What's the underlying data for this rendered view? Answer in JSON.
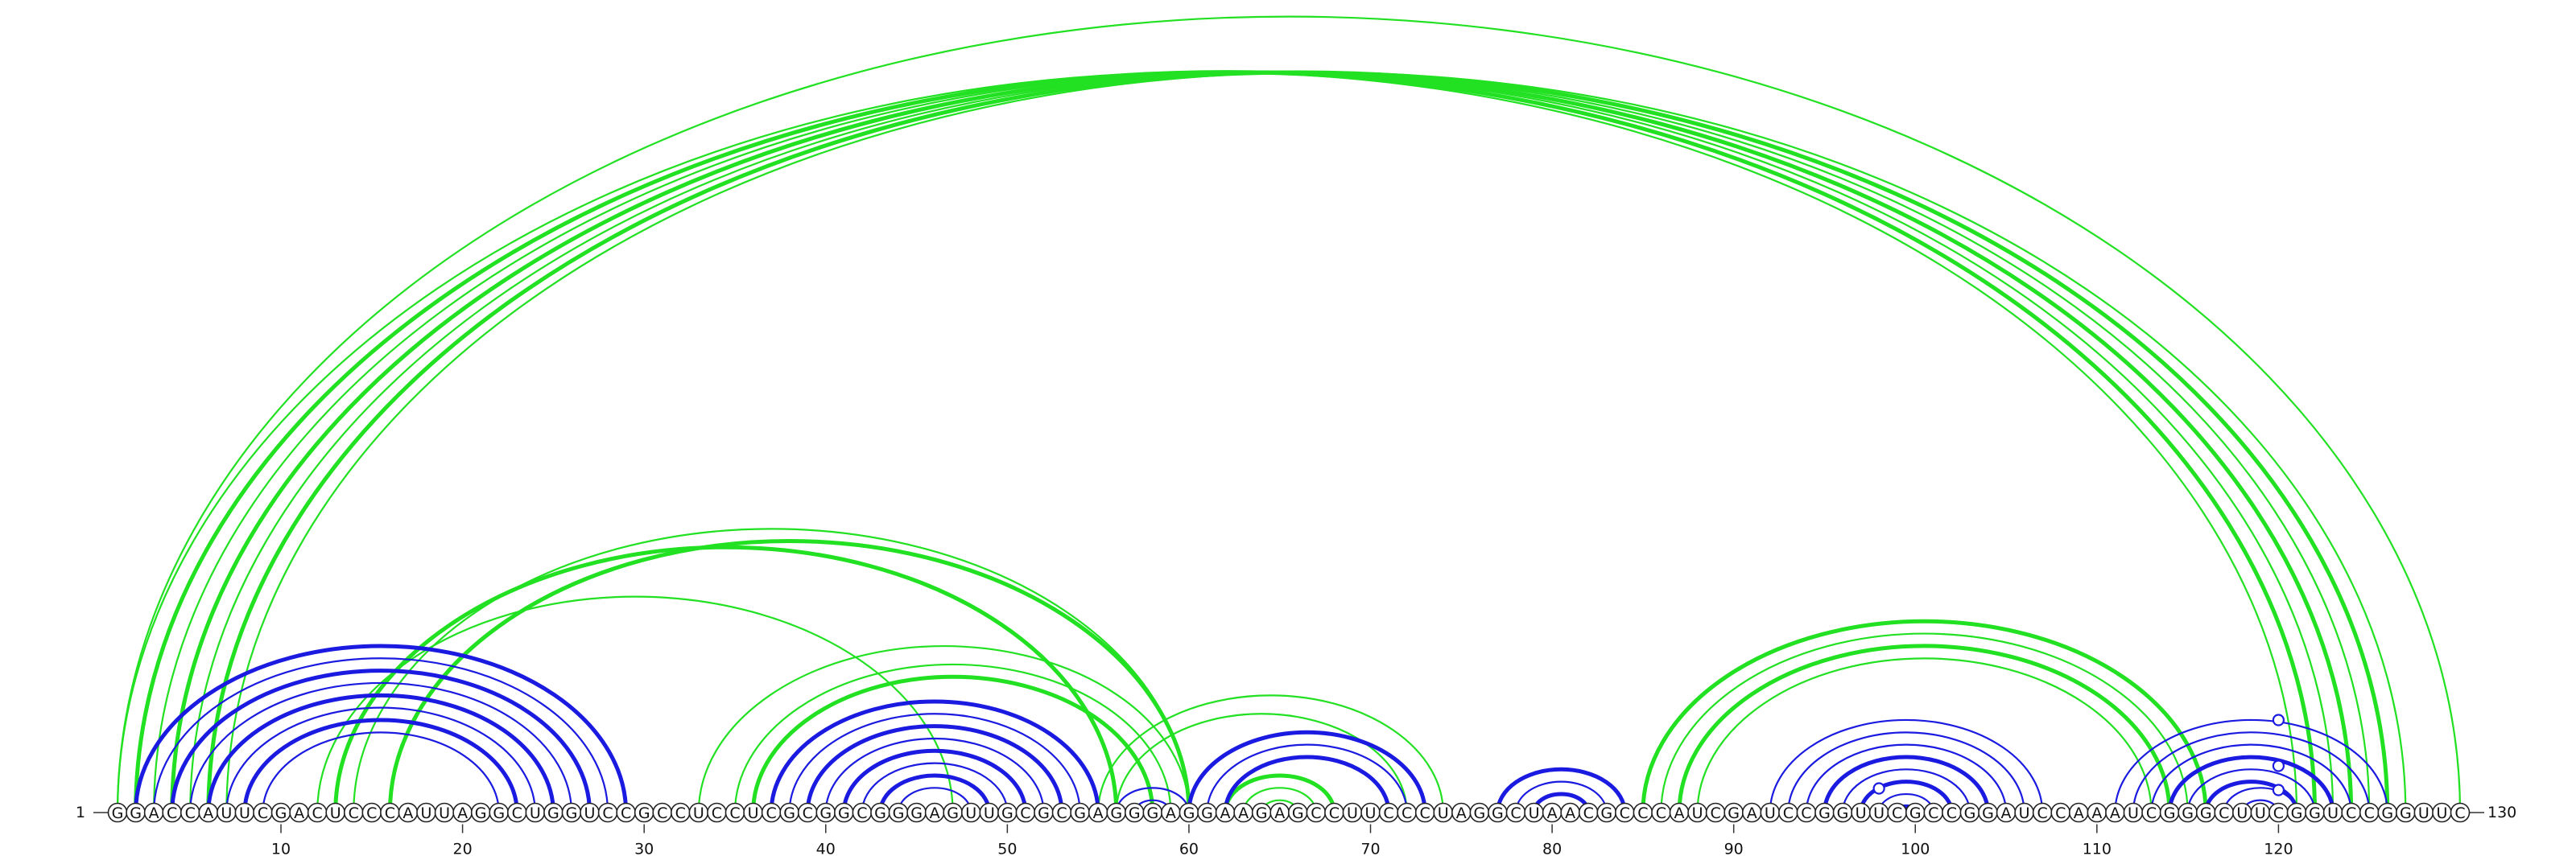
{
  "diagram": {
    "sequence": "GGACCAUUCGACUCCCAUUAGGCUGGUCCGCCUCCUCGCGGCGGGAGUUGCGCGAGGGAGGAAGAGCCUUCCCUAGGCUAACGCCCAUCGAUCCGGUUCGCCGGAUCCAAAUCGGGCUUCGGUCCGGUUC",
    "start_label": "1",
    "end_label": "130",
    "ticks": [
      10,
      20,
      30,
      40,
      50,
      60,
      70,
      80,
      90,
      100,
      110,
      120
    ],
    "colors": {
      "primary_arcs": "#1a1ae0",
      "alternative_arcs": "#22e022",
      "marker": "#1a1ae0"
    },
    "primary_pairs": [
      [
        2,
        29
      ],
      [
        3,
        28
      ],
      [
        4,
        27
      ],
      [
        5,
        26
      ],
      [
        6,
        25
      ],
      [
        7,
        24
      ],
      [
        8,
        23
      ],
      [
        9,
        22
      ],
      [
        37,
        55
      ],
      [
        38,
        54
      ],
      [
        39,
        53
      ],
      [
        40,
        52
      ],
      [
        41,
        51
      ],
      [
        42,
        50
      ],
      [
        43,
        49
      ],
      [
        44,
        48
      ],
      [
        56,
        60
      ],
      [
        57,
        59
      ],
      [
        58,
        58
      ],
      [
        60,
        73
      ],
      [
        61,
        72
      ],
      [
        62,
        71
      ],
      [
        77,
        84
      ],
      [
        78,
        83
      ],
      [
        79,
        82
      ],
      [
        92,
        107
      ],
      [
        93,
        106
      ],
      [
        94,
        105
      ],
      [
        95,
        104
      ],
      [
        96,
        103
      ],
      [
        97,
        102
      ],
      [
        98,
        101
      ],
      [
        99,
        100
      ],
      [
        111,
        126
      ],
      [
        112,
        125
      ],
      [
        113,
        124
      ],
      [
        114,
        123
      ],
      [
        115,
        122
      ],
      [
        116,
        121
      ],
      [
        117,
        121
      ],
      [
        118,
        120
      ]
    ],
    "primary_thick_pairs": [
      [
        2,
        29
      ],
      [
        4,
        27
      ],
      [
        6,
        25
      ],
      [
        8,
        23
      ],
      [
        37,
        55
      ],
      [
        39,
        53
      ],
      [
        41,
        51
      ],
      [
        43,
        49
      ],
      [
        60,
        73
      ],
      [
        62,
        71
      ],
      [
        77,
        84
      ],
      [
        79,
        82
      ],
      [
        95,
        104
      ],
      [
        97,
        102
      ],
      [
        99,
        100
      ],
      [
        114,
        123
      ],
      [
        116,
        121
      ]
    ],
    "alternative_pairs": [
      [
        1,
        121
      ],
      [
        2,
        122
      ],
      [
        3,
        123
      ],
      [
        4,
        124
      ],
      [
        5,
        125
      ],
      [
        6,
        126
      ],
      [
        7,
        127
      ],
      [
        1,
        130
      ],
      [
        12,
        47
      ],
      [
        13,
        56
      ],
      [
        14,
        60
      ],
      [
        16,
        60
      ],
      [
        33,
        60
      ],
      [
        35,
        59
      ],
      [
        36,
        58
      ],
      [
        55,
        74
      ],
      [
        56,
        72
      ],
      [
        62,
        68
      ],
      [
        63,
        67
      ],
      [
        64,
        66
      ],
      [
        85,
        116
      ],
      [
        86,
        115
      ],
      [
        87,
        114
      ],
      [
        88,
        113
      ]
    ],
    "alternative_thick_pairs": [
      [
        2,
        122
      ],
      [
        4,
        124
      ],
      [
        6,
        126
      ],
      [
        13,
        56
      ],
      [
        16,
        60
      ],
      [
        36,
        58
      ],
      [
        62,
        68
      ],
      [
        85,
        116
      ],
      [
        87,
        114
      ]
    ],
    "markers": [
      [
        120,
        "primary"
      ],
      [
        120,
        "primary"
      ],
      [
        98,
        "primary"
      ],
      [
        120,
        "primary"
      ]
    ]
  }
}
